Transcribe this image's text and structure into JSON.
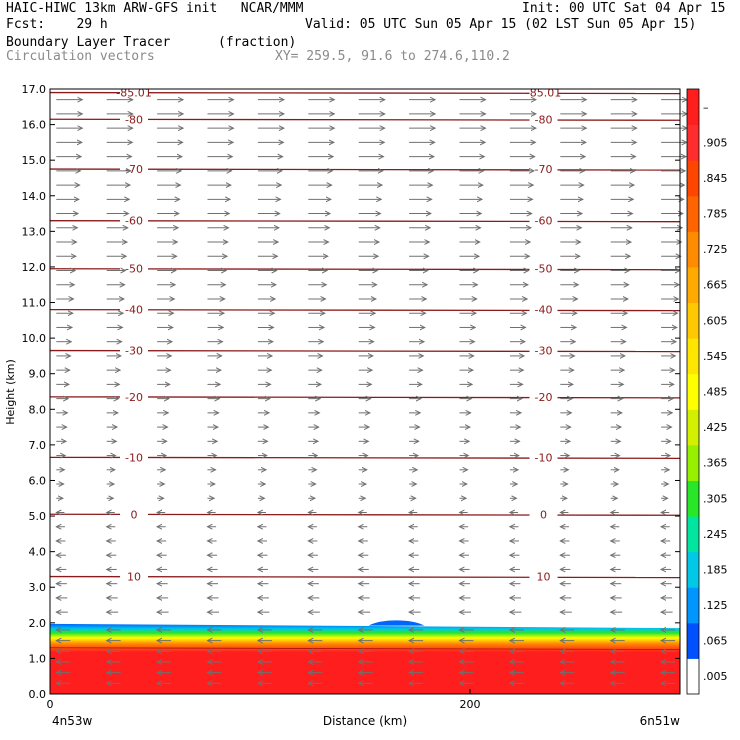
{
  "header": {
    "line1_left": "HAIC-HIWC 13km ARW-GFS init   NCAR/MMM",
    "line1_right": "Init: 00 UTC Sat 04 Apr 15",
    "line2_left": "Fcst:    29 h",
    "line2_right": "Valid: 05 UTC Sun 05 Apr 15 (02 LST Sun 05 Apr 15)",
    "line3_left": "Boundary Layer Tracer",
    "line3_units": "(fraction)",
    "line4_left": "Circulation vectors",
    "line4_xy": "XY= 259.5, 91.6 to 274.6,110.2"
  },
  "chart_data": {
    "type": "heatmap",
    "xlabel": "Distance (km)",
    "ylabel": "Height (km)",
    "xlim": [
      0,
      300
    ],
    "ylim": [
      0,
      17
    ],
    "x_ticks": [
      {
        "value": 0,
        "label": "0"
      },
      {
        "value": 200,
        "label": "200"
      }
    ],
    "x_endpoint_labels": {
      "left": "4n53w",
      "right": "6n51w"
    },
    "y_ticks": [
      "0.0",
      "1.0",
      "2.0",
      "3.0",
      "4.0",
      "5.0",
      "6.0",
      "7.0",
      "8.0",
      "9.0",
      "10.0",
      "11.0",
      "12.0",
      "13.0",
      "14.0",
      "15.0",
      "16.0",
      "17.0"
    ],
    "boundary_layer": {
      "top_km_start": 1.97,
      "top_km_end": 1.85,
      "bump_center_km": 165,
      "bump_top_km": 2.07,
      "red_top_km": 1.3,
      "color_low": "#0064ff",
      "color_high": "#ff1e1e"
    },
    "temperature_isotherms": {
      "color": "#8b1a1a",
      "labels": [
        {
          "label": "10",
          "height_km": 3.3
        },
        {
          "label": "0",
          "height_km": 5.05
        },
        {
          "label": "-10",
          "height_km": 6.65
        },
        {
          "label": "-20",
          "height_km": 8.35
        },
        {
          "label": "-30",
          "height_km": 9.65
        },
        {
          "label": "-40",
          "height_km": 10.8
        },
        {
          "label": "-50",
          "height_km": 11.95
        },
        {
          "label": "-60",
          "height_km": 13.3
        },
        {
          "label": "-70",
          "height_km": 14.75
        },
        {
          "label": "-80",
          "height_km": 16.15
        },
        {
          "label": "-85.01",
          "height_km": 16.9
        }
      ],
      "label_x_km": [
        40,
        235
      ]
    },
    "circulation_vectors": {
      "rows_km": [
        0.3,
        0.6,
        0.9,
        1.2,
        1.5,
        1.8,
        2.3,
        2.7,
        3.1,
        3.5,
        3.9,
        4.3,
        4.7,
        5.1,
        5.5,
        5.9,
        6.3,
        6.7,
        7.1,
        7.5,
        7.9,
        8.3,
        8.7,
        9.1,
        9.5,
        9.9,
        10.3,
        10.7,
        11.1,
        11.5,
        11.9,
        12.3,
        12.7,
        13.1,
        13.5,
        13.9,
        14.3,
        14.7,
        15.1,
        15.5,
        15.9,
        16.3,
        16.7
      ],
      "columns_km": [
        3,
        27,
        51,
        75,
        99,
        123,
        147,
        171,
        195,
        219,
        243,
        267,
        291
      ],
      "color": "#707070"
    },
    "colorbar": {
      "labels": [
        ".005",
        ".065",
        ".125",
        ".185",
        ".245",
        ".305",
        ".365",
        ".425",
        ".485",
        ".545",
        ".605",
        ".665",
        ".725",
        ".785",
        ".845",
        ".905",
        "–"
      ],
      "colors": [
        "#ffffff",
        "#0050ff",
        "#0096ff",
        "#00c8e6",
        "#00e6a0",
        "#28e628",
        "#96f000",
        "#d2f000",
        "#ffff00",
        "#ffe600",
        "#ffc800",
        "#ffaa00",
        "#ff8c00",
        "#ff6400",
        "#ff4600",
        "#ff2d2d",
        "#ff1e1e"
      ]
    }
  }
}
